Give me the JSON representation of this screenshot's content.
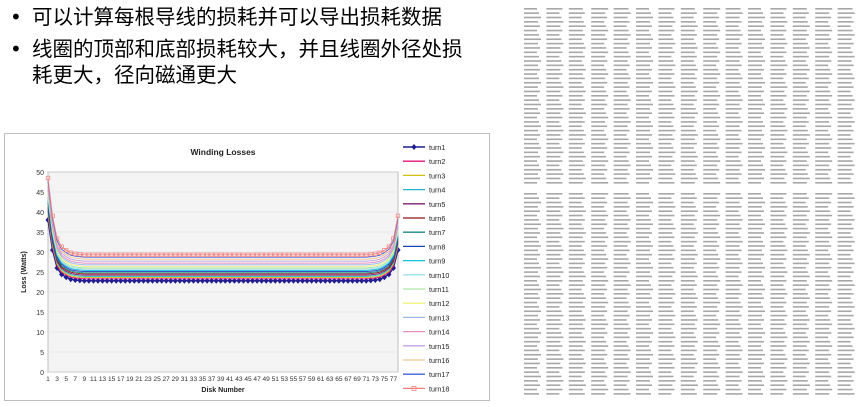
{
  "bullets": [
    {
      "text": "可以计算每根导线的损耗并可以导出损耗数据"
    },
    {
      "text": "线圈的顶部和底部损耗较大，并且线圈外径处损耗更大，径向磁通更大"
    }
  ],
  "chart_data": {
    "type": "line",
    "title": "Winding Losses",
    "xlabel": "Disk Number",
    "ylabel": "Loss (Watts)",
    "ylim": [
      0,
      50
    ],
    "yticks": [
      0,
      5,
      10,
      15,
      20,
      25,
      30,
      35,
      40,
      45,
      50
    ],
    "xlim": [
      1,
      78
    ],
    "xticks": [
      1,
      3,
      5,
      7,
      9,
      11,
      13,
      15,
      17,
      19,
      21,
      23,
      25,
      27,
      29,
      31,
      33,
      35,
      37,
      39,
      41,
      43,
      45,
      47,
      49,
      51,
      53,
      55,
      57,
      59,
      61,
      63,
      65,
      67,
      69,
      71,
      73,
      75,
      77
    ],
    "legend_position": "right",
    "series": [
      {
        "name": "turn1",
        "color": "#1f1f8f",
        "marker": "diamond",
        "values": [
          38.0,
          30.5,
          26.0,
          24.4,
          23.7,
          23.2,
          23.0,
          22.9,
          22.8,
          22.8,
          22.8,
          22.8,
          22.8,
          22.8,
          22.8,
          22.8,
          22.8,
          22.8,
          22.8,
          22.8,
          22.8,
          22.8,
          22.8,
          22.8,
          22.8,
          22.8,
          22.8,
          22.8,
          22.8,
          22.8,
          22.8,
          22.8,
          22.8,
          22.8,
          22.8,
          22.8,
          22.8,
          22.8,
          22.8,
          22.8,
          22.8,
          22.8,
          22.8,
          22.8,
          22.8,
          22.8,
          22.8,
          22.8,
          22.8,
          22.8,
          22.8,
          22.8,
          22.8,
          22.8,
          22.8,
          22.8,
          22.8,
          22.8,
          22.8,
          22.8,
          22.8,
          22.8,
          22.8,
          22.8,
          22.8,
          22.8,
          22.8,
          22.8,
          22.8,
          22.8,
          22.8,
          22.9,
          23.0,
          23.2,
          23.7,
          24.4,
          26.0,
          30.5
        ]
      },
      {
        "name": "turn2",
        "color": "#e0147a",
        "base": 23.3,
        "peak": 38.8
      },
      {
        "name": "turn3",
        "color": "#d4c010",
        "base": 23.6,
        "peak": 39.4
      },
      {
        "name": "turn4",
        "color": "#20b8c8",
        "base": 23.9,
        "peak": 40.0
      },
      {
        "name": "turn5",
        "color": "#7a1f6e",
        "base": 24.2,
        "peak": 40.6
      },
      {
        "name": "turn6",
        "color": "#8b1a1a",
        "base": 24.5,
        "peak": 41.2
      },
      {
        "name": "turn7",
        "color": "#1a8a8a",
        "base": 24.8,
        "peak": 41.8
      },
      {
        "name": "turn8",
        "color": "#1f3fbf",
        "base": 25.1,
        "peak": 42.4
      },
      {
        "name": "turn9",
        "color": "#18c0e0",
        "base": 25.4,
        "peak": 43.0
      },
      {
        "name": "turn10",
        "color": "#9fe0e8",
        "base": 25.7,
        "peak": 43.6
      },
      {
        "name": "turn11",
        "color": "#b0e8a8",
        "base": 26.0,
        "peak": 44.2
      },
      {
        "name": "turn12",
        "color": "#f0f080",
        "base": 26.4,
        "peak": 44.8
      },
      {
        "name": "turn13",
        "color": "#9ab8e8",
        "base": 26.8,
        "peak": 45.4
      },
      {
        "name": "turn14",
        "color": "#e890c8",
        "base": 27.2,
        "peak": 46.0
      },
      {
        "name": "turn15",
        "color": "#c8a0e0",
        "base": 27.7,
        "peak": 46.6
      },
      {
        "name": "turn16",
        "color": "#f0c890",
        "base": 28.2,
        "peak": 47.2
      },
      {
        "name": "turn17",
        "color": "#4060e0",
        "base": 28.7,
        "peak": 47.8
      },
      {
        "name": "turn18",
        "color": "#f08080",
        "marker": "square",
        "base": 29.3,
        "peak": 48.5
      }
    ]
  },
  "colors": {
    "plot_background": "#f4f4f4",
    "grid": "#d9d9d9",
    "table_text": "#8a8a8a"
  }
}
